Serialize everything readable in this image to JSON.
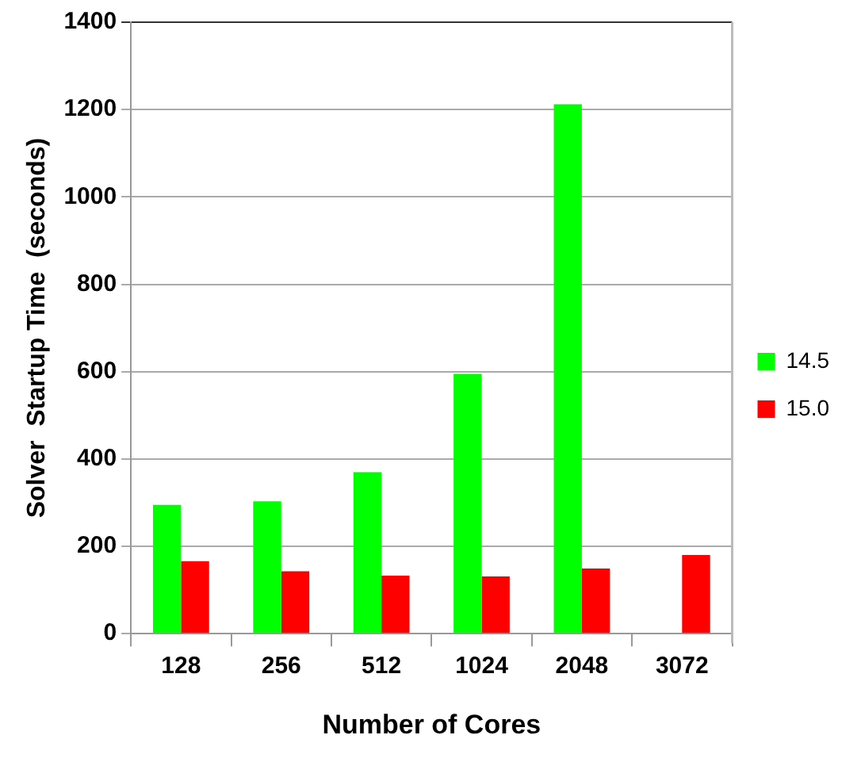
{
  "chart_data": {
    "type": "bar",
    "xlabel": "Number of Cores",
    "ylabel": "Solver  Startup Time  (seconds)",
    "categories": [
      "128",
      "256",
      "512",
      "1024",
      "2048",
      "3072"
    ],
    "series": [
      {
        "name": "14.5",
        "color": "#00ff00",
        "values": [
          295,
          303,
          370,
          595,
          1212,
          null
        ]
      },
      {
        "name": "15.0",
        "color": "#ff0000",
        "values": [
          166,
          143,
          133,
          131,
          149,
          180
        ]
      }
    ],
    "ylim": [
      0,
      1400
    ],
    "yticks": [
      0,
      200,
      400,
      600,
      800,
      1000,
      1200,
      1400
    ],
    "grid": "y",
    "legend": "right"
  }
}
